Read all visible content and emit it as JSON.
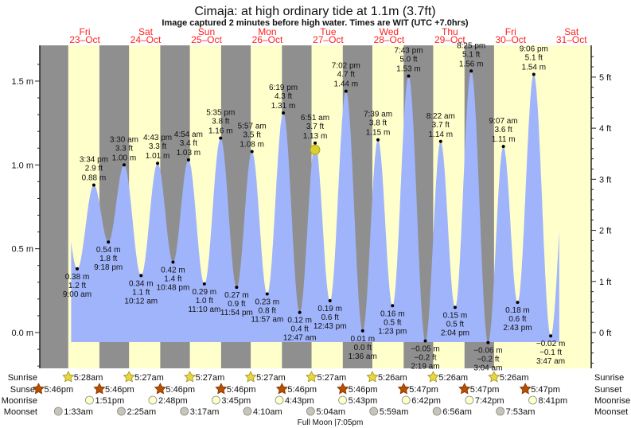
{
  "chart_data": {
    "type": "area",
    "title": "Cimaja: at high  ordinary tide at 1.1m (3.7ft)",
    "subtitle": "Image captured 2 minutes before high water. Times are WIT (UTC +7.0hrs)",
    "days": [
      {
        "name": "Fri",
        "date": "23–Oct"
      },
      {
        "name": "Sat",
        "date": "24–Oct"
      },
      {
        "name": "Sun",
        "date": "25–Oct"
      },
      {
        "name": "Mon",
        "date": "26–Oct"
      },
      {
        "name": "Tue",
        "date": "27–Oct"
      },
      {
        "name": "Wed",
        "date": "28–Oct"
      },
      {
        "name": "Thu",
        "date": "29–Oct"
      },
      {
        "name": "Fri",
        "date": "30–Oct"
      },
      {
        "name": "Sat",
        "date": "31–Oct"
      }
    ],
    "y_left": {
      "unit": "m",
      "ticks": [
        "0.0 m",
        "0.5 m",
        "1.0 m",
        "1.5 m"
      ],
      "tick_values": [
        0,
        0.5,
        1.0,
        1.5
      ]
    },
    "y_right": {
      "unit": "ft",
      "ticks": [
        "0 ft",
        "1 ft",
        "2 ft",
        "3 ft",
        "4 ft",
        "5 ft"
      ],
      "tick_values": [
        0,
        1,
        2,
        3,
        4,
        5
      ]
    },
    "extremes": [
      {
        "day": 23,
        "time": "9:00 am",
        "h": 9.0,
        "m": "0.38 m",
        "ft": "1.2 ft",
        "v": 0.38,
        "type": "low"
      },
      {
        "day": 23,
        "time": "3:34 pm",
        "h": 15.57,
        "m": "0.88 m",
        "ft": "2.9 ft",
        "v": 0.88,
        "type": "high"
      },
      {
        "day": 23,
        "time": "9:18 pm",
        "h": 21.3,
        "m": "0.54 m",
        "ft": "1.8 ft",
        "v": 0.54,
        "type": "low"
      },
      {
        "day": 24,
        "time": "3:30 am",
        "h": 3.5,
        "m": "1.00 m",
        "ft": "3.3 ft",
        "v": 1.0,
        "type": "high"
      },
      {
        "day": 24,
        "time": "10:12 am",
        "h": 10.2,
        "m": "0.34 m",
        "ft": "1.1 ft",
        "v": 0.34,
        "type": "low"
      },
      {
        "day": 24,
        "time": "4:43 pm",
        "h": 16.72,
        "m": "1.01 m",
        "ft": "3.3 ft",
        "v": 1.01,
        "type": "high"
      },
      {
        "day": 24,
        "time": "10:48 pm",
        "h": 22.8,
        "m": "0.42 m",
        "ft": "1.4 ft",
        "v": 0.42,
        "type": "low"
      },
      {
        "day": 25,
        "time": "4:54 am",
        "h": 4.9,
        "m": "1.03 m",
        "ft": "3.4 ft",
        "v": 1.03,
        "type": "high"
      },
      {
        "day": 25,
        "time": "11:10 am",
        "h": 11.17,
        "m": "0.29 m",
        "ft": "1.0 ft",
        "v": 0.29,
        "type": "low"
      },
      {
        "day": 25,
        "time": "5:35 pm",
        "h": 17.58,
        "m": "1.16 m",
        "ft": "3.8 ft",
        "v": 1.16,
        "type": "high"
      },
      {
        "day": 25,
        "time": "11:54 pm",
        "h": 23.9,
        "m": "0.27 m",
        "ft": "0.9 ft",
        "v": 0.27,
        "type": "low"
      },
      {
        "day": 26,
        "time": "5:57 am",
        "h": 5.95,
        "m": "1.08 m",
        "ft": "3.5 ft",
        "v": 1.08,
        "type": "high"
      },
      {
        "day": 26,
        "time": "11:57 am",
        "h": 11.95,
        "m": "0.23 m",
        "ft": "0.8 ft",
        "v": 0.23,
        "type": "low"
      },
      {
        "day": 26,
        "time": "6:19 pm",
        "h": 18.32,
        "m": "1.31 m",
        "ft": "4.3 ft",
        "v": 1.31,
        "type": "high"
      },
      {
        "day": 27,
        "time": "12:47 am",
        "h": 0.78,
        "m": "0.12 m",
        "ft": "0.4 ft",
        "v": 0.12,
        "type": "low"
      },
      {
        "day": 27,
        "time": "6:51 am",
        "h": 6.85,
        "m": "1.13 m",
        "ft": "3.7 ft",
        "v": 1.13,
        "type": "high"
      },
      {
        "day": 27,
        "time": "12:43 pm",
        "h": 12.72,
        "m": "0.19 m",
        "ft": "0.6 ft",
        "v": 0.19,
        "type": "low"
      },
      {
        "day": 27,
        "time": "7:02 pm",
        "h": 19.03,
        "m": "1.44 m",
        "ft": "4.7 ft",
        "v": 1.44,
        "type": "high"
      },
      {
        "day": 28,
        "time": "1:36 am",
        "h": 1.6,
        "m": "0.01 m",
        "ft": "0.0 ft",
        "v": 0.01,
        "type": "low"
      },
      {
        "day": 28,
        "time": "7:39 am",
        "h": 7.65,
        "m": "1.15 m",
        "ft": "3.8 ft",
        "v": 1.15,
        "type": "high"
      },
      {
        "day": 28,
        "time": "1:23 pm",
        "h": 13.38,
        "m": "0.16 m",
        "ft": "0.5 ft",
        "v": 0.16,
        "type": "low"
      },
      {
        "day": 28,
        "time": "7:43 pm",
        "h": 19.72,
        "m": "1.53 m",
        "ft": "5.0 ft",
        "v": 1.53,
        "type": "high"
      },
      {
        "day": 29,
        "time": "2:19 am",
        "h": 2.32,
        "m": "−0.05 m",
        "ft": "−0.2 ft",
        "v": -0.05,
        "type": "low"
      },
      {
        "day": 29,
        "time": "8:22 am",
        "h": 8.37,
        "m": "1.14 m",
        "ft": "3.7 ft",
        "v": 1.14,
        "type": "high"
      },
      {
        "day": 29,
        "time": "2:04 pm",
        "h": 14.07,
        "m": "0.15 m",
        "ft": "0.5 ft",
        "v": 0.15,
        "type": "low"
      },
      {
        "day": 29,
        "time": "8:25 pm",
        "h": 20.42,
        "m": "1.56 m",
        "ft": "5.1 ft",
        "v": 1.56,
        "type": "high"
      },
      {
        "day": 30,
        "time": "3:04 am",
        "h": 3.07,
        "m": "−0.06 m",
        "ft": "−0.2 ft",
        "v": -0.06,
        "type": "low"
      },
      {
        "day": 30,
        "time": "9:07 am",
        "h": 9.12,
        "m": "1.11 m",
        "ft": "3.6 ft",
        "v": 1.11,
        "type": "high"
      },
      {
        "day": 30,
        "time": "2:43 pm",
        "h": 14.72,
        "m": "0.18 m",
        "ft": "0.6 ft",
        "v": 0.18,
        "type": "low"
      },
      {
        "day": 30,
        "time": "9:06 pm",
        "h": 21.1,
        "m": "1.54 m",
        "ft": "5.1 ft",
        "v": 1.54,
        "type": "high"
      },
      {
        "day": 31,
        "time": "3:47 am",
        "h": 3.78,
        "m": "−0.02 m",
        "ft": "−0.1 ft",
        "v": -0.02,
        "type": "low"
      }
    ],
    "current": {
      "day": 27,
      "h": 6.82,
      "v": 1.1
    }
  },
  "rows": {
    "sunrise_label": "Sunrise",
    "sunset_label": "Sunset",
    "moonrise_label": "Moonrise",
    "moonset_label": "Moonset",
    "sunrise": [
      {
        "day": 23,
        "h": 5.47,
        "t": "5:28am"
      },
      {
        "day": 24,
        "h": 5.45,
        "t": "5:27am"
      },
      {
        "day": 25,
        "h": 5.45,
        "t": "5:27am"
      },
      {
        "day": 26,
        "h": 5.45,
        "t": "5:27am"
      },
      {
        "day": 27,
        "h": 5.45,
        "t": "5:27am"
      },
      {
        "day": 28,
        "h": 5.43,
        "t": "5:26am"
      },
      {
        "day": 29,
        "h": 5.43,
        "t": "5:26am"
      },
      {
        "day": 30,
        "h": 5.43,
        "t": "5:26am"
      }
    ],
    "sunset": [
      {
        "day": 22,
        "h": 17.77,
        "t": "5:46pm"
      },
      {
        "day": 23,
        "h": 17.77,
        "t": "5:46pm"
      },
      {
        "day": 24,
        "h": 17.77,
        "t": "5:46pm"
      },
      {
        "day": 25,
        "h": 17.77,
        "t": "5:46pm"
      },
      {
        "day": 26,
        "h": 17.77,
        "t": "5:46pm"
      },
      {
        "day": 27,
        "h": 17.77,
        "t": "5:46pm"
      },
      {
        "day": 28,
        "h": 17.78,
        "t": "5:47pm"
      },
      {
        "day": 29,
        "h": 17.78,
        "t": "5:47pm"
      },
      {
        "day": 30,
        "h": 17.78,
        "t": "5:47pm"
      }
    ],
    "moonrise": [
      {
        "day": 23,
        "h": 13.85,
        "t": "1:51pm"
      },
      {
        "day": 24,
        "h": 14.8,
        "t": "2:48pm"
      },
      {
        "day": 25,
        "h": 15.75,
        "t": "3:45pm"
      },
      {
        "day": 26,
        "h": 16.72,
        "t": "4:43pm"
      },
      {
        "day": 27,
        "h": 17.72,
        "t": "5:43pm"
      },
      {
        "day": 28,
        "h": 18.7,
        "t": "6:42pm"
      },
      {
        "day": 29,
        "h": 19.7,
        "t": "7:42pm"
      },
      {
        "day": 30,
        "h": 20.68,
        "t": "8:41pm"
      }
    ],
    "moonset": [
      {
        "day": 23,
        "h": 1.55,
        "t": "1:33am"
      },
      {
        "day": 24,
        "h": 2.42,
        "t": "2:25am"
      },
      {
        "day": 25,
        "h": 3.28,
        "t": "3:17am"
      },
      {
        "day": 26,
        "h": 4.17,
        "t": "4:10am"
      },
      {
        "day": 27,
        "h": 5.07,
        "t": "5:04am"
      },
      {
        "day": 28,
        "h": 5.98,
        "t": "5:59am"
      },
      {
        "day": 29,
        "h": 6.93,
        "t": "6:56am"
      },
      {
        "day": 30,
        "h": 7.88,
        "t": "7:53am"
      }
    ],
    "full_moon": "Full Moon |7:05pm"
  },
  "colors": {
    "night": "#8f8f8f",
    "day": "#ffffcc",
    "water": "#a0b4fb",
    "day_label": "#ff2020",
    "sunrise": "#e8d840",
    "sunset": "#b85000",
    "moonrise": "#ffffcc",
    "moonset": "#c8c4b8",
    "current": "#d8d030"
  }
}
